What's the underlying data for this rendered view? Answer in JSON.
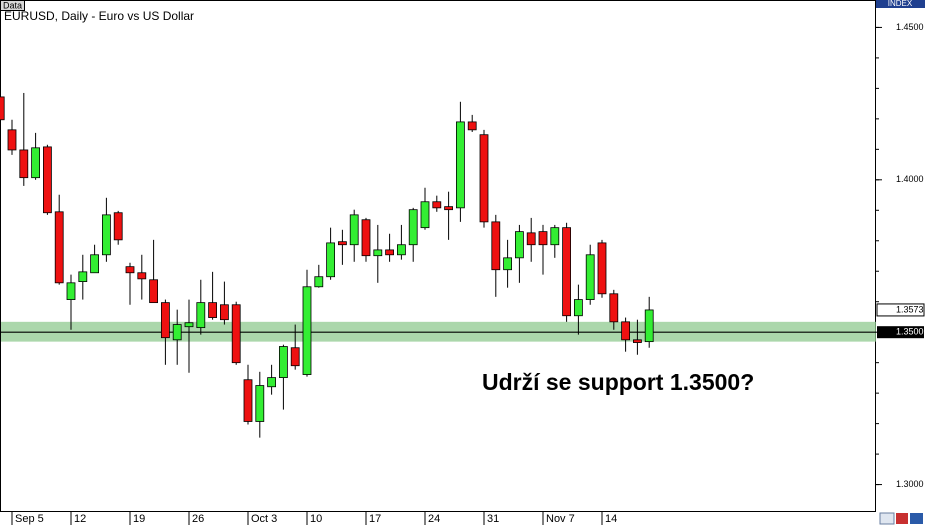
{
  "chart_data": {
    "type": "candlestick",
    "box_label": "Data",
    "index_label": "INDEX",
    "title": "EURUSD, Daily - Euro vs US Dollar",
    "annotation": "Udrží se support 1.3500?",
    "categories": [
      null,
      "Sep 5",
      null,
      null,
      null,
      null,
      "12",
      null,
      null,
      null,
      null,
      "19",
      null,
      null,
      null,
      null,
      "26",
      null,
      null,
      null,
      null,
      "Oct 3",
      null,
      null,
      null,
      null,
      "10",
      null,
      null,
      null,
      null,
      "17",
      null,
      null,
      null,
      null,
      "24",
      null,
      null,
      null,
      null,
      "31",
      null,
      null,
      null,
      null,
      "Nov 7",
      null,
      null,
      null,
      null,
      "14",
      null,
      null,
      null,
      null
    ],
    "open": [
      1.4272,
      1.4164,
      1.4098,
      1.4007,
      1.4108,
      1.3895,
      1.3607,
      1.3666,
      1.3695,
      1.3754,
      1.3892,
      1.3715,
      1.3695,
      1.3672,
      1.3597,
      1.3475,
      1.3518,
      1.3515,
      1.3597,
      1.359,
      1.359,
      1.3344,
      1.3207,
      1.3321,
      1.3351,
      1.3449,
      1.3361,
      1.3649,
      1.3682,
      1.3797,
      1.3787,
      1.3869,
      1.3751,
      1.377,
      1.3754,
      1.3787,
      1.3843,
      1.3928,
      1.3912,
      1.3908,
      1.419,
      1.4148,
      1.3862,
      1.3705,
      1.3744,
      1.3826,
      1.383,
      1.3787,
      1.3843,
      1.3554,
      1.3607,
      1.3793,
      1.3626,
      1.3534,
      1.3475,
      1.3469
    ],
    "high": [
      1.4295,
      1.4197,
      1.4285,
      1.4154,
      1.4115,
      1.3951,
      1.3689,
      1.3754,
      1.3787,
      1.3941,
      1.3898,
      1.3728,
      1.3754,
      1.3803,
      1.3607,
      1.3574,
      1.3607,
      1.3672,
      1.3698,
      1.3666,
      1.36,
      1.3393,
      1.337,
      1.3393,
      1.3459,
      1.3525,
      1.3705,
      1.3721,
      1.3843,
      1.3836,
      1.3902,
      1.3875,
      1.3852,
      1.3823,
      1.3852,
      1.3908,
      1.3974,
      1.3948,
      1.3961,
      1.4256,
      1.4213,
      1.4164,
      1.3885,
      1.3803,
      1.3852,
      1.3875,
      1.3852,
      1.3852,
      1.3859,
      1.3656,
      1.3787,
      1.3803,
      1.3639,
      1.3548,
      1.3541,
      1.3616
    ],
    "low": [
      1.419,
      1.4082,
      1.398,
      1.4,
      1.3885,
      1.3656,
      1.3508,
      1.3607,
      1.3695,
      1.3731,
      1.3787,
      1.359,
      1.3607,
      1.3597,
      1.3393,
      1.3393,
      1.3367,
      1.3492,
      1.3541,
      1.3525,
      1.3393,
      1.3197,
      1.3154,
      1.3295,
      1.3246,
      1.3377,
      1.3354,
      1.3646,
      1.3672,
      1.3721,
      1.3731,
      1.3731,
      1.3662,
      1.3731,
      1.3738,
      1.3731,
      1.3836,
      1.3895,
      1.3803,
      1.3862,
      1.4157,
      1.3843,
      1.3616,
      1.3646,
      1.3662,
      1.3731,
      1.3689,
      1.3744,
      1.3534,
      1.3492,
      1.359,
      1.3613,
      1.3508,
      1.3436,
      1.3426,
      1.3449
    ],
    "close": [
      1.4197,
      1.4098,
      1.4007,
      1.4105,
      1.3892,
      1.3662,
      1.3662,
      1.3698,
      1.3754,
      1.3885,
      1.3803,
      1.3695,
      1.3675,
      1.3597,
      1.3482,
      1.3525,
      1.3531,
      1.3597,
      1.3548,
      1.3541,
      1.34,
      1.3207,
      1.3325,
      1.3351,
      1.3453,
      1.339,
      1.3649,
      1.3682,
      1.3793,
      1.3787,
      1.3885,
      1.3751,
      1.377,
      1.3754,
      1.3787,
      1.3902,
      1.3928,
      1.3908,
      1.3902,
      1.419,
      1.4164,
      1.3862,
      1.3705,
      1.3744,
      1.383,
      1.3787,
      1.3787,
      1.3843,
      1.3554,
      1.3607,
      1.3754,
      1.3626,
      1.3534,
      1.3475,
      1.3466,
      1.3573
    ],
    "up_color": "#33ee33",
    "down_color": "#ee1111",
    "ylim": [
      1.291,
      1.459
    ],
    "yticks": [
      {
        "value": 1.45,
        "label": "1.4500"
      },
      {
        "value": 1.4,
        "label": "1.4000"
      },
      {
        "value": 1.3,
        "label": "1.3000"
      }
    ],
    "yticks_minor": [
      1.3,
      1.31,
      1.32,
      1.33,
      1.34,
      1.35,
      1.36,
      1.37,
      1.38,
      1.39,
      1.4,
      1.41,
      1.42,
      1.43,
      1.44,
      1.45
    ],
    "support": {
      "low": 1.3469,
      "high": 1.3534,
      "color": "#8fc98f",
      "level": {
        "value": 1.35,
        "label": "1.3500"
      }
    },
    "last_price": {
      "value": 1.3573,
      "label": "1.3573"
    }
  }
}
